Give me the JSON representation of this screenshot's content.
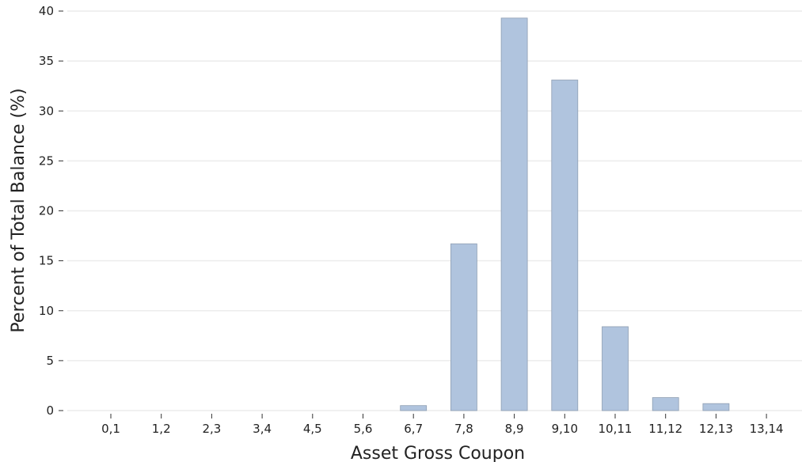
{
  "chart_data": {
    "type": "bar",
    "title": "",
    "xlabel": "Asset Gross Coupon",
    "ylabel": "Percent of Total Balance (%)",
    "categories": [
      "0,1",
      "1,2",
      "2,3",
      "3,4",
      "4,5",
      "5,6",
      "6,7",
      "7,8",
      "8,9",
      "9,10",
      "10,11",
      "11,12",
      "12,13",
      "13,14"
    ],
    "values": [
      0,
      0,
      0,
      0,
      0,
      0,
      0.5,
      16.7,
      39.3,
      33.1,
      8.4,
      1.3,
      0.7,
      0
    ],
    "ylim": [
      0,
      40
    ],
    "yticks": [
      0,
      5,
      10,
      15,
      20,
      25,
      30,
      35,
      40
    ],
    "grid": "horizontal",
    "bar_color": "#b0c4de",
    "bar_edge_color": "#8e9eb2"
  }
}
